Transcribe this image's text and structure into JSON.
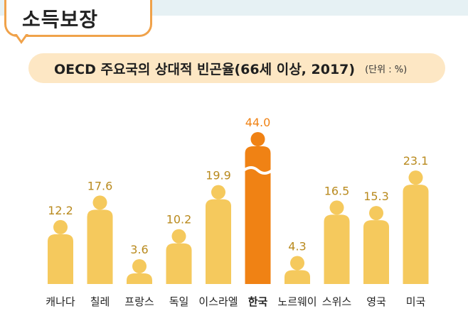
{
  "badge": {
    "label": "소득보장"
  },
  "header": {
    "title": "OECD 주요국의 상대적 빈곤율(66세 이상, 2017)",
    "unit": "(단위 : %)"
  },
  "colors": {
    "bar": "#f5c95d",
    "highlight": "#f08214",
    "value_text": "#b98a1e",
    "highlight_text": "#f08214"
  },
  "chart_data": {
    "type": "bar",
    "title": "OECD 주요국의 상대적 빈곤율(66세 이상, 2017)",
    "unit": "%",
    "categories": [
      "캐나다",
      "칠레",
      "프랑스",
      "독일",
      "이스라엘",
      "한국",
      "노르웨이",
      "스위스",
      "영국",
      "미국"
    ],
    "values": [
      12.2,
      17.6,
      3.6,
      10.2,
      19.9,
      44.0,
      4.3,
      16.5,
      15.3,
      23.1
    ],
    "value_labels": [
      "12.2",
      "17.6",
      "3.6",
      "10.2",
      "19.9",
      "44.0",
      "4.3",
      "16.5",
      "15.3",
      "23.1"
    ],
    "highlight": "한국",
    "axis_break": true
  }
}
